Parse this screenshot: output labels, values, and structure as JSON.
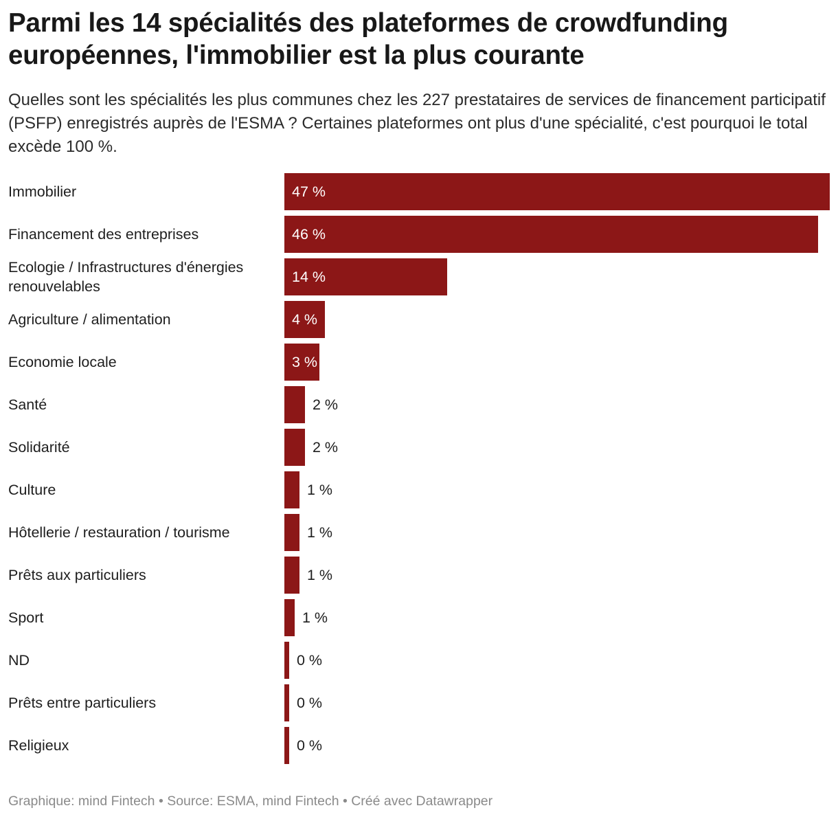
{
  "header": {
    "title": "Parmi les 14 spécialités des plateformes de crowdfunding européennes, l'immobilier est la plus courante",
    "subtitle": "Quelles sont les spécialités les plus communes chez les 227 prestataires de services de financement participatif (PSFP) enregistrés auprès de l'ESMA ? Certaines plateformes ont plus d'une spécialité, c'est pourquoi le total excède 100 %."
  },
  "footer": {
    "credit": "Graphique: mind Fintech • Source: ESMA, mind Fintech • Créé avec Datawrapper"
  },
  "colors": {
    "bar": "#8c1717",
    "label_inside": "#ffffff",
    "label_outside": "#1e1e1e"
  },
  "chart_data": {
    "type": "bar",
    "orientation": "horizontal",
    "title": "Parmi les 14 spécialités des plateformes de crowdfunding européennes, l'immobilier est la plus courante",
    "subtitle": "Quelles sont les spécialités les plus communes chez les 227 prestataires de services de financement participatif (PSFP) enregistrés auprès de l'ESMA ? Certaines plateformes ont plus d'une spécialité, c'est pourquoi le total excède 100 %.",
    "categories": [
      "Immobilier",
      "Financement des entreprises",
      "Ecologie / Infrastructures d'énergies renouvelables",
      "Agriculture / alimentation",
      "Economie locale",
      "Santé",
      "Solidarité",
      "Culture",
      "Hôtellerie / restauration / tourisme",
      "Prêts aux particuliers",
      "Sport",
      "ND",
      "Prêts entre particuliers",
      "Religieux"
    ],
    "values": [
      47,
      46,
      14,
      3.5,
      3,
      1.8,
      1.8,
      1.3,
      1.3,
      1.3,
      0.9,
      0.4,
      0.4,
      0.4
    ],
    "value_labels": [
      "47 %",
      "46 %",
      "14 %",
      "4 %",
      "3 %",
      "2 %",
      "2 %",
      "1 %",
      "1 %",
      "1 %",
      "1 %",
      "0 %",
      "0 %",
      "0 %"
    ],
    "unit": "%",
    "xlim": [
      0,
      47
    ],
    "grid": false,
    "xlabel": "",
    "ylabel": ""
  }
}
